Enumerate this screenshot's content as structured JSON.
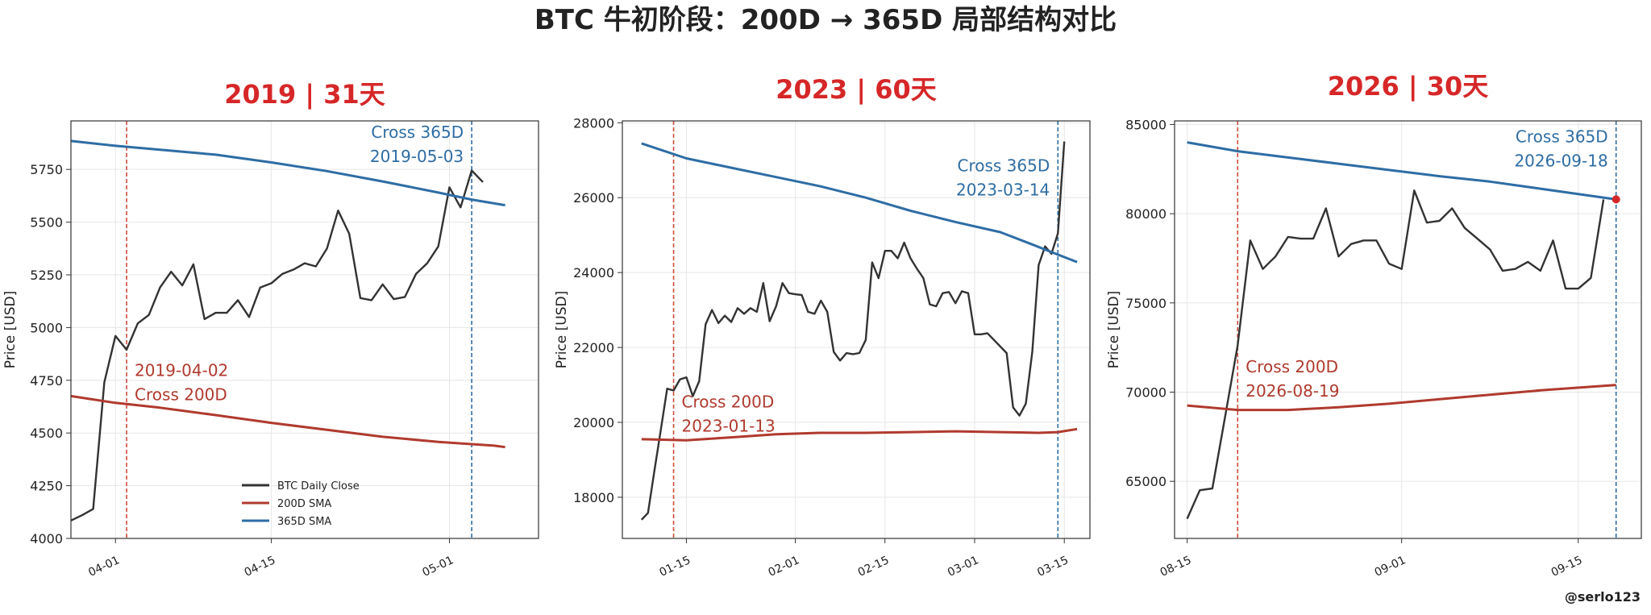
{
  "figure": {
    "title": "BTC 牛初阶段：200D → 365D 局部结构对比",
    "credit": "@serlo123",
    "colors": {
      "close": "#333333",
      "sma200": "#b03a2e",
      "sma365": "#2e6da4",
      "cross200_line": "#d04a3a",
      "cross365_line": "#2e6da4",
      "panel_title": "#d62728",
      "grid": "#e6e6e6"
    },
    "legend": {
      "placement": "lower-center of first panel",
      "entries": [
        "BTC Daily Close",
        "200D SMA",
        "365D SMA"
      ]
    }
  },
  "chart_data": [
    {
      "type": "line",
      "title": "2019 | 31天",
      "ylabel": "Price [USD]",
      "xlabel": "",
      "grid": true,
      "x_range": [
        "2019-03-28",
        "2019-05-09"
      ],
      "ylim": [
        4000,
        5980
      ],
      "yticks": [
        4000,
        4250,
        4500,
        4750,
        5000,
        5250,
        5500,
        5750
      ],
      "xticks": [
        {
          "date": "2019-04-01",
          "label": "04-01"
        },
        {
          "date": "2019-04-15",
          "label": "04-15"
        },
        {
          "date": "2019-05-01",
          "label": "05-01"
        }
      ],
      "series": [
        {
          "name": "BTC Daily Close",
          "role": "close",
          "x": [
            "2019-03-28",
            "2019-03-29",
            "2019-03-30",
            "2019-03-31",
            "2019-04-01",
            "2019-04-02",
            "2019-04-03",
            "2019-04-04",
            "2019-04-05",
            "2019-04-06",
            "2019-04-07",
            "2019-04-08",
            "2019-04-09",
            "2019-04-10",
            "2019-04-11",
            "2019-04-12",
            "2019-04-13",
            "2019-04-14",
            "2019-04-15",
            "2019-04-16",
            "2019-04-17",
            "2019-04-18",
            "2019-04-19",
            "2019-04-20",
            "2019-04-21",
            "2019-04-22",
            "2019-04-23",
            "2019-04-24",
            "2019-04-25",
            "2019-04-26",
            "2019-04-27",
            "2019-04-28",
            "2019-04-29",
            "2019-04-30",
            "2019-05-01",
            "2019-05-02",
            "2019-05-03",
            "2019-05-04",
            "2019-05-05",
            "2019-05-06"
          ],
          "y": [
            4085,
            4110,
            4140,
            4740,
            4960,
            4895,
            5020,
            5060,
            5190,
            5265,
            5200,
            5300,
            5040,
            5070,
            5070,
            5130,
            5050,
            5190,
            5210,
            5255,
            5275,
            5305,
            5290,
            5375,
            5555,
            5445,
            5140,
            5130,
            5205,
            5135,
            5145,
            5255,
            5305,
            5385,
            5665,
            5570,
            5745,
            5690,
            null,
            null
          ]
        },
        {
          "name": "200D SMA",
          "role": "sma200",
          "x": [
            "2019-03-28",
            "2019-04-01",
            "2019-04-05",
            "2019-04-10",
            "2019-04-15",
            "2019-04-20",
            "2019-04-25",
            "2019-04-30",
            "2019-05-05",
            "2019-05-06"
          ],
          "y": [
            4675,
            4643,
            4620,
            4585,
            4548,
            4515,
            4482,
            4458,
            4440,
            4433
          ]
        },
        {
          "name": "365D SMA",
          "role": "sma365",
          "x": [
            "2019-03-28",
            "2019-04-01",
            "2019-04-05",
            "2019-04-10",
            "2019-04-15",
            "2019-04-20",
            "2019-04-25",
            "2019-04-30",
            "2019-05-03",
            "2019-05-06"
          ],
          "y": [
            5885,
            5862,
            5843,
            5820,
            5783,
            5742,
            5693,
            5640,
            5607,
            5580
          ]
        }
      ],
      "markers": [
        {
          "date": "2019-04-02",
          "role": "cross200",
          "labels": [
            "2019-04-02",
            "Cross 200D"
          ],
          "label_value": 4770,
          "label_anchor": "start"
        },
        {
          "date": "2019-05-03",
          "role": "cross365",
          "labels": [
            "Cross 365D",
            "2019-05-03"
          ],
          "label_value": 5900,
          "label_anchor": "end"
        }
      ],
      "show_legend": true
    },
    {
      "type": "line",
      "title": "2023 | 60天",
      "ylabel": "Price [USD]",
      "xlabel": "",
      "grid": true,
      "x_range": [
        "2023-01-05",
        "2023-03-19"
      ],
      "ylim": [
        16900,
        28050
      ],
      "yticks": [
        18000,
        20000,
        22000,
        24000,
        26000,
        28000
      ],
      "xticks": [
        {
          "date": "2023-01-15",
          "label": "01-15"
        },
        {
          "date": "2023-02-01",
          "label": "02-01"
        },
        {
          "date": "2023-02-15",
          "label": "02-15"
        },
        {
          "date": "2023-03-01",
          "label": "03-01"
        },
        {
          "date": "2023-03-15",
          "label": "03-15"
        }
      ],
      "series": [
        {
          "name": "BTC Daily Close",
          "role": "close",
          "x": [
            "2023-01-08",
            "2023-01-09",
            "2023-01-10",
            "2023-01-11",
            "2023-01-12",
            "2023-01-13",
            "2023-01-14",
            "2023-01-15",
            "2023-01-16",
            "2023-01-17",
            "2023-01-18",
            "2023-01-19",
            "2023-01-20",
            "2023-01-21",
            "2023-01-22",
            "2023-01-23",
            "2023-01-24",
            "2023-01-25",
            "2023-01-26",
            "2023-01-27",
            "2023-01-28",
            "2023-01-29",
            "2023-01-30",
            "2023-01-31",
            "2023-02-01",
            "2023-02-02",
            "2023-02-03",
            "2023-02-04",
            "2023-02-05",
            "2023-02-06",
            "2023-02-07",
            "2023-02-08",
            "2023-02-09",
            "2023-02-10",
            "2023-02-11",
            "2023-02-12",
            "2023-02-13",
            "2023-02-14",
            "2023-02-15",
            "2023-02-16",
            "2023-02-17",
            "2023-02-18",
            "2023-02-19",
            "2023-02-20",
            "2023-02-21",
            "2023-02-22",
            "2023-02-23",
            "2023-02-24",
            "2023-02-25",
            "2023-02-26",
            "2023-02-27",
            "2023-02-28",
            "2023-03-01",
            "2023-03-02",
            "2023-03-03",
            "2023-03-06",
            "2023-03-07",
            "2023-03-08",
            "2023-03-09",
            "2023-03-10",
            "2023-03-11",
            "2023-03-12",
            "2023-03-13",
            "2023-03-14",
            "2023-03-15",
            "2023-03-16",
            "2023-03-17"
          ],
          "y": [
            17400,
            17580,
            18700,
            19800,
            20900,
            20850,
            21150,
            21200,
            20700,
            21100,
            22620,
            23000,
            22650,
            22850,
            22680,
            23050,
            22900,
            23050,
            22950,
            23720,
            22700,
            23100,
            23720,
            23450,
            23420,
            23400,
            22950,
            22900,
            23250,
            22950,
            21880,
            21650,
            21850,
            21820,
            21850,
            22200,
            24270,
            23850,
            24580,
            24580,
            24380,
            24800,
            24380,
            24100,
            23850,
            23150,
            23100,
            23450,
            23480,
            23180,
            23500,
            23450,
            22350,
            22350,
            22380,
            21850,
            20400,
            20180,
            20500,
            21880,
            24200,
            24700,
            24500,
            25050,
            27500,
            null,
            null
          ]
        },
        {
          "name": "200D SMA",
          "role": "sma200",
          "x": [
            "2023-01-08",
            "2023-01-15",
            "2023-01-22",
            "2023-01-29",
            "2023-02-05",
            "2023-02-12",
            "2023-02-19",
            "2023-02-26",
            "2023-03-05",
            "2023-03-11",
            "2023-03-14",
            "2023-03-17"
          ],
          "y": [
            19550,
            19520,
            19600,
            19680,
            19720,
            19720,
            19740,
            19760,
            19740,
            19720,
            19740,
            19820
          ]
        },
        {
          "name": "365D SMA",
          "role": "sma365",
          "x": [
            "2023-01-08",
            "2023-01-15",
            "2023-01-22",
            "2023-01-29",
            "2023-02-05",
            "2023-02-12",
            "2023-02-19",
            "2023-02-26",
            "2023-03-05",
            "2023-03-10",
            "2023-03-14",
            "2023-03-17"
          ],
          "y": [
            27450,
            27050,
            26800,
            26550,
            26300,
            26000,
            25650,
            25350,
            25080,
            24750,
            24480,
            24280
          ]
        }
      ],
      "markers": [
        {
          "date": "2023-01-13",
          "role": "cross200",
          "labels": [
            "Cross 200D",
            "2023-01-13"
          ],
          "label_value": 20400,
          "label_anchor": "start"
        },
        {
          "date": "2023-03-14",
          "role": "cross365",
          "labels": [
            "Cross 365D",
            "2023-03-14"
          ],
          "label_value": 26700,
          "label_anchor": "end"
        }
      ],
      "show_legend": false
    },
    {
      "type": "line",
      "title": "2026 | 30天",
      "ylabel": "Price [USD]",
      "xlabel": "",
      "grid": true,
      "x_range": [
        "2026-08-14",
        "2026-09-20"
      ],
      "ylim": [
        61800,
        85200
      ],
      "yticks": [
        65000,
        70000,
        75000,
        80000,
        85000
      ],
      "xticks": [
        {
          "date": "2026-08-15",
          "label": "08-15"
        },
        {
          "date": "2026-09-01",
          "label": "09-01"
        },
        {
          "date": "2026-09-15",
          "label": "09-15"
        }
      ],
      "series": [
        {
          "name": "BTC Daily Close",
          "role": "close",
          "x": [
            "2026-08-15",
            "2026-08-16",
            "2026-08-17",
            "2026-08-18",
            "2026-08-19",
            "2026-08-20",
            "2026-08-21",
            "2026-08-22",
            "2026-08-23",
            "2026-08-24",
            "2026-08-25",
            "2026-08-26",
            "2026-08-27",
            "2026-08-28",
            "2026-08-29",
            "2026-08-30",
            "2026-08-31",
            "2026-09-01",
            "2026-09-02",
            "2026-09-03",
            "2026-09-04",
            "2026-09-05",
            "2026-09-06",
            "2026-09-07",
            "2026-09-08",
            "2026-09-09",
            "2026-09-10",
            "2026-09-11",
            "2026-09-12",
            "2026-09-13",
            "2026-09-14",
            "2026-09-15",
            "2026-09-16",
            "2026-09-17",
            "2026-09-18"
          ],
          "y": [
            62900,
            64500,
            64600,
            68600,
            72600,
            78500,
            76900,
            77600,
            78700,
            78600,
            78600,
            80300,
            77600,
            78300,
            78500,
            78500,
            77200,
            76900,
            81300,
            79500,
            79600,
            80300,
            79200,
            78600,
            78000,
            76800,
            76900,
            77300,
            76800,
            78500,
            75800,
            75800,
            76400,
            80800,
            null
          ]
        },
        {
          "name": "200D SMA",
          "role": "sma200",
          "x": [
            "2026-08-15",
            "2026-08-19",
            "2026-08-23",
            "2026-08-27",
            "2026-08-31",
            "2026-09-04",
            "2026-09-08",
            "2026-09-12",
            "2026-09-18"
          ],
          "y": [
            69250,
            69000,
            69000,
            69150,
            69350,
            69600,
            69850,
            70100,
            70400
          ]
        },
        {
          "name": "365D SMA",
          "role": "sma365",
          "x": [
            "2026-08-15",
            "2026-08-19",
            "2026-08-23",
            "2026-08-27",
            "2026-08-31",
            "2026-09-04",
            "2026-09-08",
            "2026-09-12",
            "2026-09-18"
          ],
          "y": [
            84000,
            83500,
            83150,
            82800,
            82450,
            82100,
            81800,
            81400,
            80800
          ]
        }
      ],
      "markers": [
        {
          "date": "2026-08-19",
          "role": "cross200",
          "labels": [
            "Cross 200D",
            "2026-08-19"
          ],
          "label_value": 71100,
          "label_anchor": "start"
        },
        {
          "date": "2026-09-18",
          "role": "cross365",
          "labels": [
            "Cross 365D",
            "2026-09-18"
          ],
          "label_value": 84000,
          "label_anchor": "end"
        }
      ],
      "end_point": {
        "date": "2026-09-18",
        "value": 80800
      },
      "show_legend": false
    }
  ]
}
